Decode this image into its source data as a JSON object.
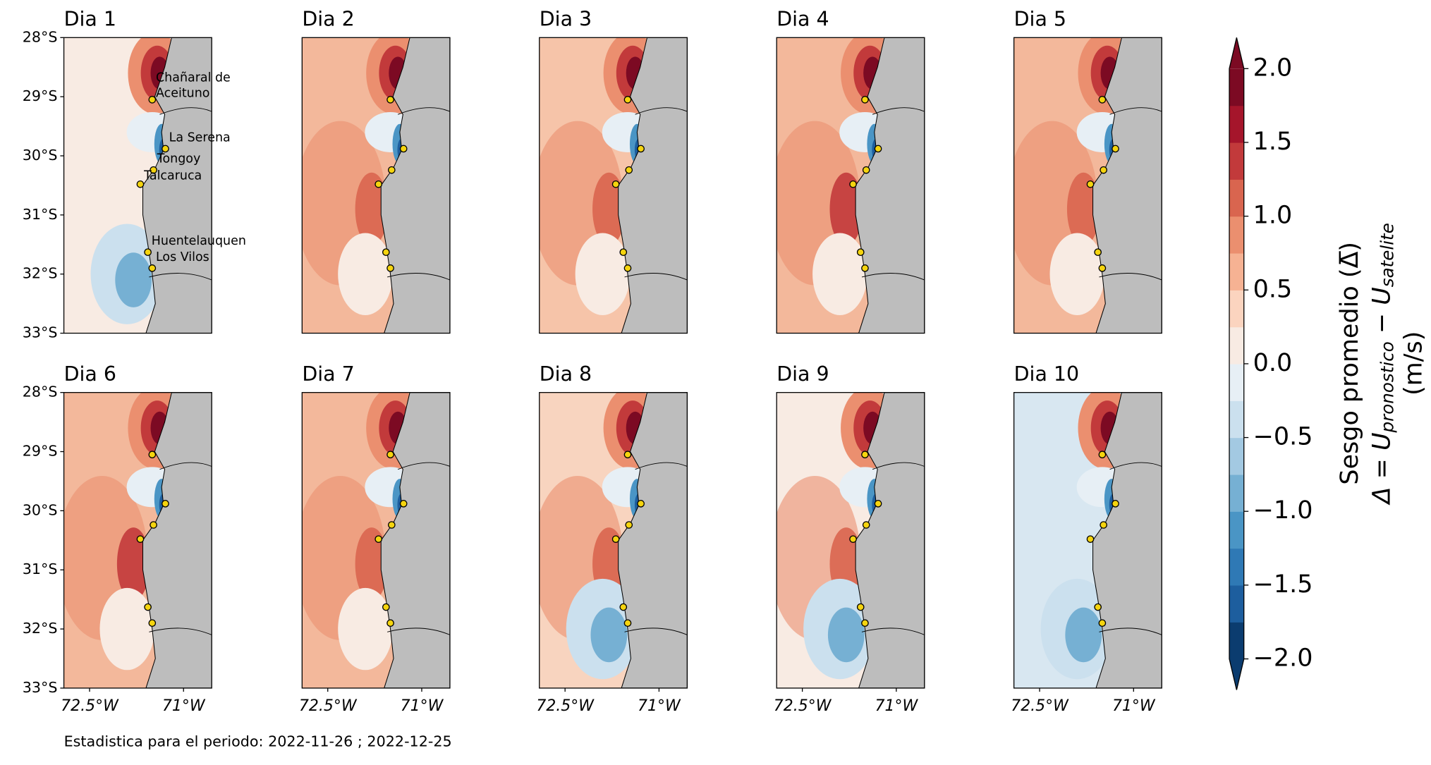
{
  "chart_data": {
    "type": "map",
    "panels": [
      "Dia 1",
      "Dia 2",
      "Dia 3",
      "Dia 4",
      "Dia 5",
      "Dia 6",
      "Dia 7",
      "Dia 8",
      "Dia 9",
      "Dia 10"
    ],
    "xlim": [
      -72.91,
      -70.55
    ],
    "ylim": [
      -33,
      -28
    ],
    "xticks": [
      {
        "value": -72.5,
        "label": "72.5°W"
      },
      {
        "value": -71,
        "label": "71°W"
      }
    ],
    "yticks": [
      {
        "value": -28,
        "label": "28°S"
      },
      {
        "value": -29,
        "label": "29°S"
      },
      {
        "value": -30,
        "label": "30°S"
      },
      {
        "value": -31,
        "label": "31°S"
      },
      {
        "value": -32,
        "label": "32°S"
      },
      {
        "value": -33,
        "label": "33°S"
      }
    ],
    "stations": [
      {
        "name": "Chañaral de\nAceituno",
        "lon": -71.5,
        "lat": -29.05
      },
      {
        "name": "La Serena",
        "lon": -71.29,
        "lat": -29.88
      },
      {
        "name": "Tongoy",
        "lon": -71.48,
        "lat": -30.24
      },
      {
        "name": "Talcaruca",
        "lon": -71.69,
        "lat": -30.48
      },
      {
        "name": "Huentelauquen",
        "lon": -71.57,
        "lat": -31.63
      },
      {
        "name": "Los Vilos",
        "lon": -71.5,
        "lat": -31.9
      }
    ],
    "colorbar": {
      "clim": [
        -2,
        2
      ],
      "colors": [
        "#0b3c6f",
        "#1d5e9e",
        "#2f79b5",
        "#4a95c5",
        "#76b0d3",
        "#a3c9e2",
        "#cbe0ee",
        "#e7eff5",
        "#f8ebe3",
        "#fbd4bf",
        "#f6b293",
        "#eb8f6f",
        "#d9654f",
        "#c23a3b",
        "#a5152b",
        "#7c0a23"
      ],
      "ticks": [
        {
          "value": 2,
          "label": "2.0"
        },
        {
          "value": 1.5,
          "label": "1.5"
        },
        {
          "value": 1,
          "label": "1.0"
        },
        {
          "value": 0.5,
          "label": "0.5"
        },
        {
          "value": 0,
          "label": "0.0"
        },
        {
          "value": -0.5,
          "label": "−0.5"
        },
        {
          "value": -1,
          "label": "−1.0"
        },
        {
          "value": -1.5,
          "label": "−1.5"
        },
        {
          "value": -2,
          "label": "−2.0"
        }
      ],
      "label": [
        "Sesgo promedio (Δ̅)",
        "Δ = U",
        "pronostico",
        " − U",
        "satelite",
        "(m/s)"
      ]
    },
    "footnote": "Estadistica para el periodo: 2022-11-26 ; 2022-12-25"
  }
}
